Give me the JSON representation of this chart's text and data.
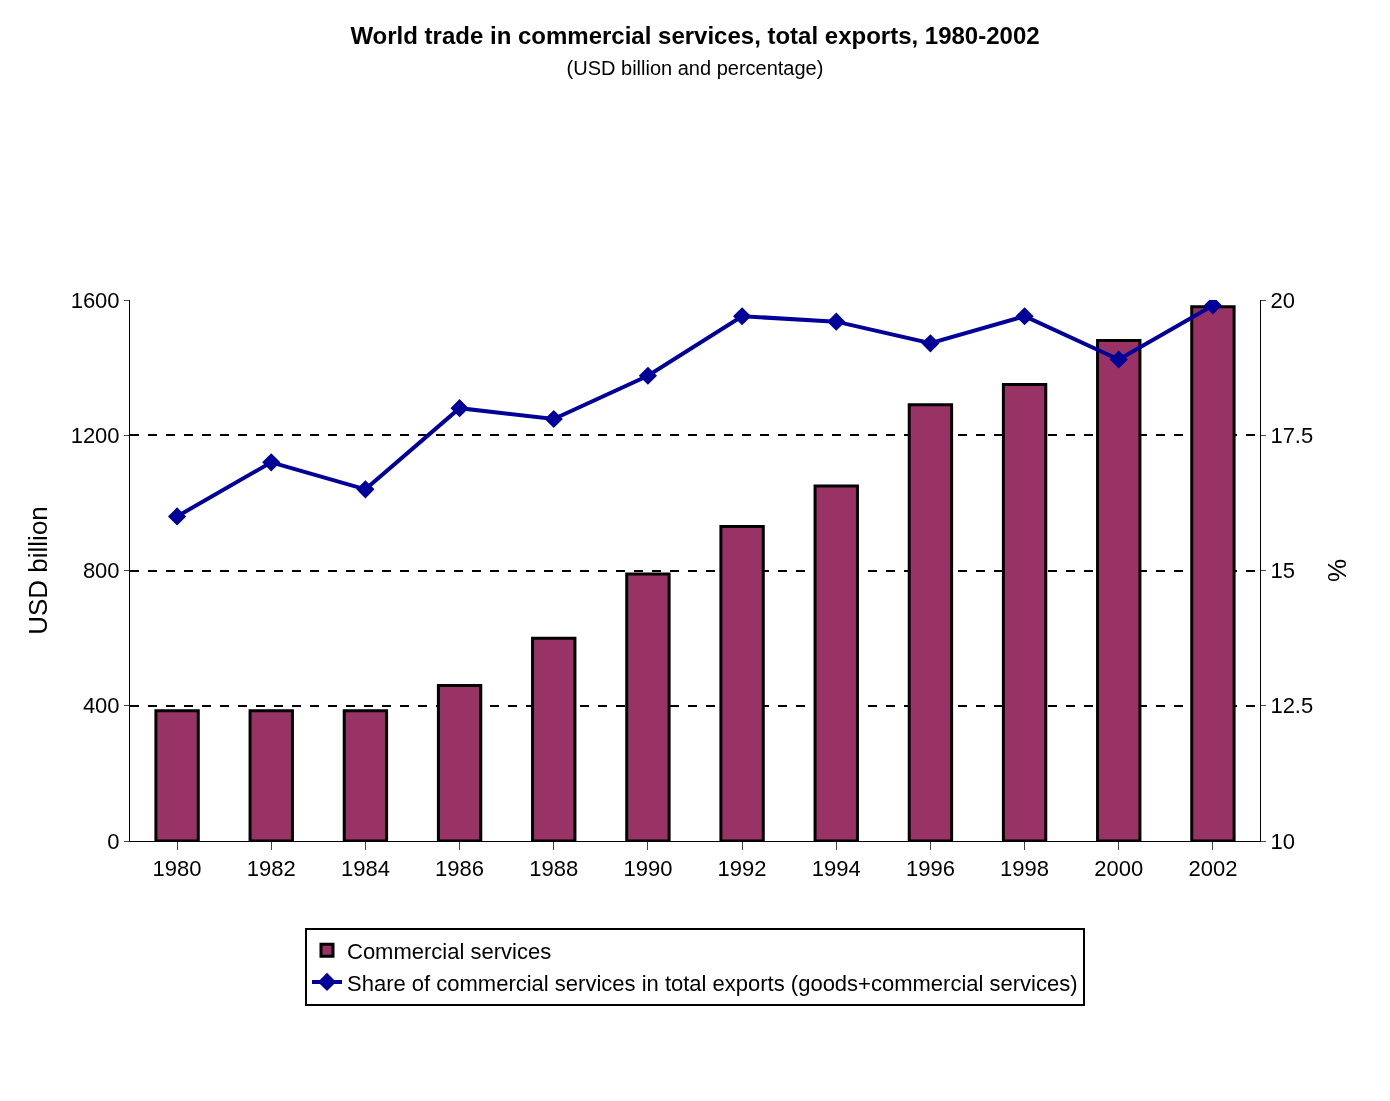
{
  "chart_data": {
    "type": "bar",
    "title": "World trade in commercial services, total exports, 1980-2002",
    "subtitle": "(USD billion and percentage)",
    "ylabel": "USD billion",
    "y2label": "%",
    "categories": [
      "1980",
      "1982",
      "1984",
      "1986",
      "1988",
      "1990",
      "1992",
      "1994",
      "1996",
      "1998",
      "2000",
      "2002"
    ],
    "series": [
      {
        "name": "Commercial services",
        "color": "#993366",
        "values": [
          385,
          385,
          385,
          460,
          600,
          790,
          930,
          1050,
          1290,
          1350,
          1480,
          1580
        ]
      },
      {
        "name": "Share of commercial services in total exports (goods+commercial services)",
        "type": "line",
        "axis": "y2",
        "color": "#000099",
        "marker": "diamond",
        "values": [
          16.0,
          17.0,
          16.5,
          18.0,
          17.8,
          18.6,
          19.7,
          19.6,
          19.2,
          19.7,
          18.9,
          19.9
        ]
      }
    ],
    "ylim": [
      0,
      1600
    ],
    "yticks": [
      0,
      400,
      800,
      1200,
      1600
    ],
    "y2lim": [
      10,
      20
    ],
    "y2ticks": [
      10,
      12.5,
      15,
      17.5,
      20
    ],
    "grid": "y",
    "legend": "bottom"
  }
}
